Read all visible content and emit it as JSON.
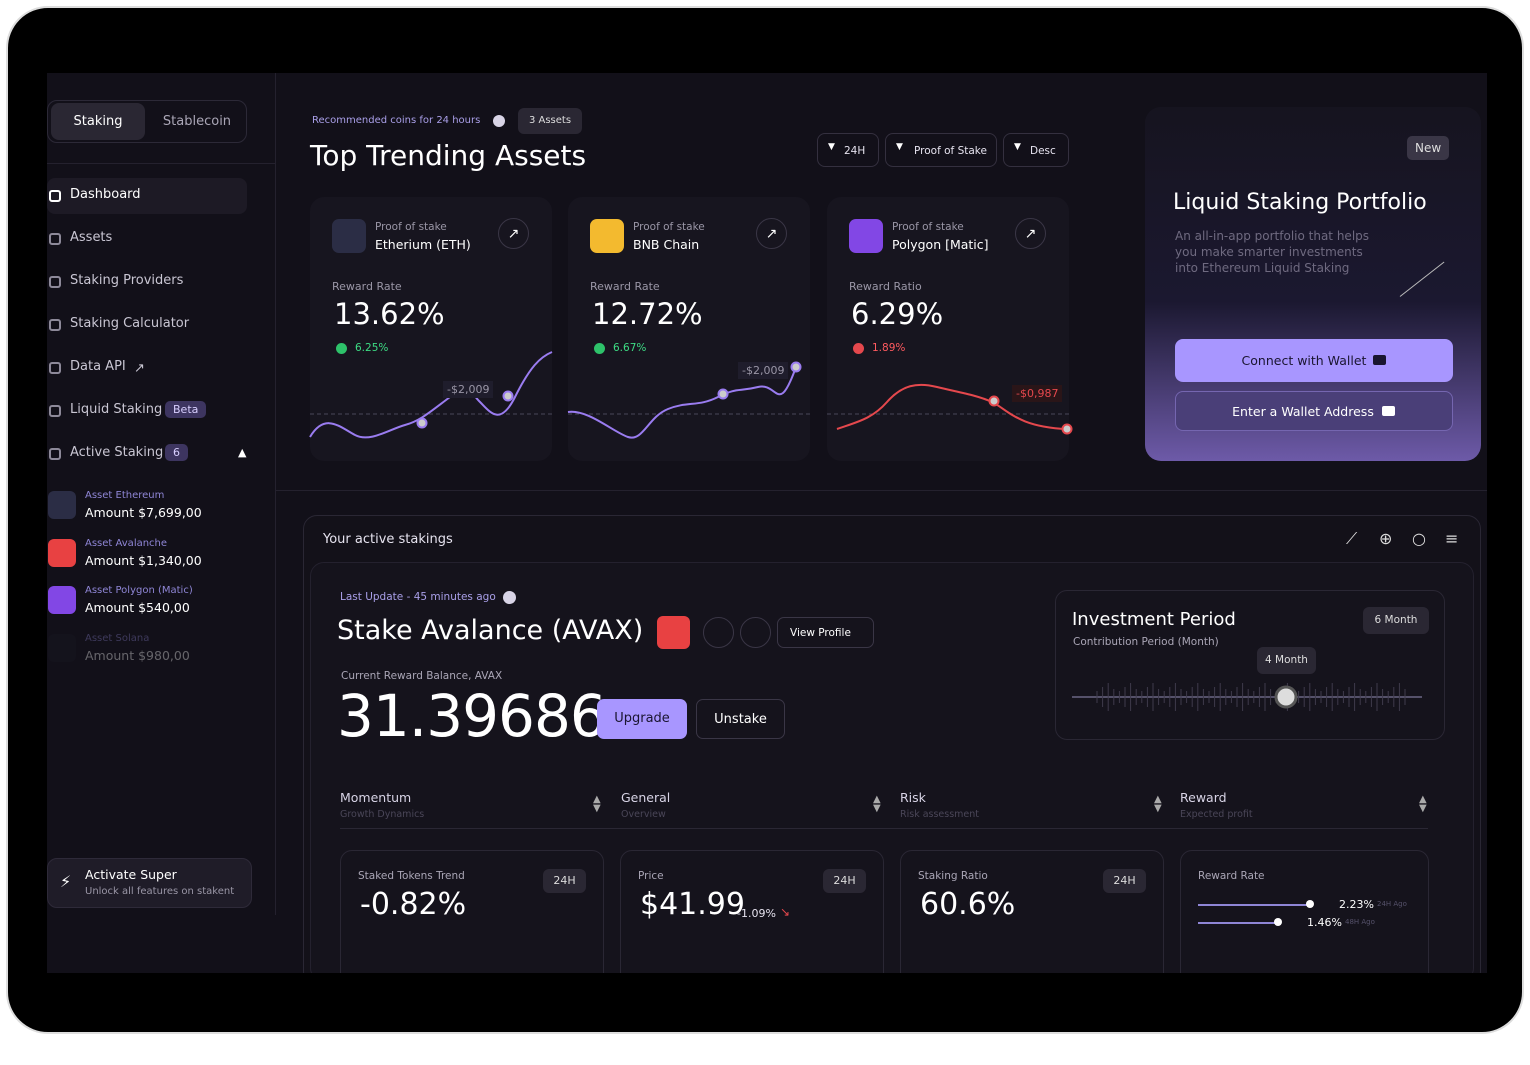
{
  "sidebar": {
    "tabs": [
      "Staking",
      "Stablecoin"
    ],
    "nav": [
      {
        "label": "Dashboard"
      },
      {
        "label": "Assets"
      },
      {
        "label": "Staking Providers"
      },
      {
        "label": "Staking Calculator"
      },
      {
        "label": "Data API"
      },
      {
        "label": "Liquid Staking",
        "badge": "Beta"
      },
      {
        "label": "Active Staking",
        "badge": "6"
      }
    ],
    "assets": [
      {
        "name": "Asset Ethereum",
        "amount": "Amount $7,699,00"
      },
      {
        "name": "Asset Avalanche",
        "amount": "Amount $1,340,00"
      },
      {
        "name": "Asset Polygon (Matic)",
        "amount": "Amount $540,00"
      },
      {
        "name": "Asset Solana",
        "amount": "Amount $980,00"
      }
    ],
    "promo": {
      "title": "Activate Super",
      "subtitle": "Unlock all features on stakent"
    }
  },
  "trending": {
    "caption": "Recommended coins for 24 hours",
    "count": "3 Assets",
    "title": "Top Trending Assets",
    "filters": [
      "24H",
      "Proof of Stake",
      "Desc"
    ],
    "cards": [
      {
        "kind": "Proof of stake",
        "name": "Etherium (ETH)",
        "rate_label": "Reward Rate",
        "rate": "13.62%",
        "change": "6.25%",
        "tooltip": "-$2,009"
      },
      {
        "kind": "Proof of stake",
        "name": "BNB Chain",
        "rate_label": "Reward Rate",
        "rate": "12.72%",
        "change": "6.67%",
        "tooltip": "-$2,009"
      },
      {
        "kind": "Proof of stake",
        "name": "Polygon [Matic]",
        "rate_label": "Reward Ratio",
        "rate": "6.29%",
        "change": "1.89%",
        "tooltip": "-$0,987"
      }
    ]
  },
  "portfolio": {
    "badge": "New",
    "title": "Liquid Staking Portfolio",
    "description": "An all-in-app portfolio that helps you make smarter investments into Ethereum Liquid Staking",
    "buttons": [
      "Connect with Wallet",
      "Enter a Wallet Address"
    ]
  },
  "active": {
    "title": "Your active stakings",
    "last_update": "Last Update - 45 minutes ago",
    "name": "Stake Avalance (AVAX)",
    "view_profile": "View Profile",
    "balance_label": "Current Reward  Balance, AVAX",
    "balance": "31.39686",
    "actions": [
      "Upgrade",
      "Unstake"
    ],
    "period": {
      "title": "Investment Period",
      "subtitle": "Contribution Period (Month)",
      "badge": "6 Month",
      "tooltip": "4 Month"
    },
    "columns": [
      {
        "title": "Momentum",
        "subtitle": "Growth Dynamics"
      },
      {
        "title": "General",
        "subtitle": "Overview"
      },
      {
        "title": "Risk",
        "subtitle": "Risk assessment"
      },
      {
        "title": "Reward",
        "subtitle": "Expected profit"
      }
    ],
    "stats": [
      {
        "label": "Staked Tokens Trend",
        "badge": "24H",
        "value": "-0.82%"
      },
      {
        "label": "Price",
        "badge": "24H",
        "value": "$41.99",
        "change": "-1.09%"
      },
      {
        "label": "Staking Ratio",
        "badge": "24H",
        "value": "60.6%"
      },
      {
        "label": "Reward Rate",
        "rows": [
          {
            "value": "2.23%",
            "note": "24H Ago"
          },
          {
            "value": "1.46%",
            "note": "48H Ago"
          }
        ]
      }
    ]
  }
}
